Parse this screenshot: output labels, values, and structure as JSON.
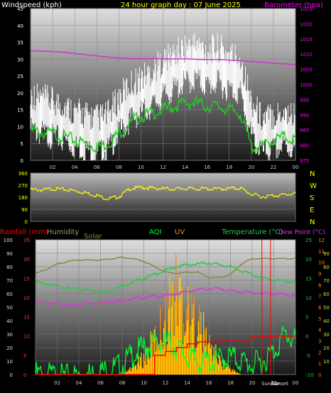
{
  "header": {
    "wind_label": "Windspeed (kph)",
    "title": "24 hour graph day : 07 June 2025",
    "baro_label": "Barometer (hpa)"
  },
  "direction_labels": [
    "N",
    "W",
    "S",
    "E",
    "N"
  ],
  "bottom_labels": {
    "rain": "Rainfall (mm)",
    "humidity": "Humidity",
    "solar": "Solar",
    "aqi": "AQI",
    "uv": "UV",
    "temp": "Temperature (°C)",
    "dew": "Dew Point (°C)",
    "sunrise": "Sunrise",
    "sunset": "Sunset"
  },
  "colors": {
    "wind_gust": "#ffffff",
    "wind_avg": "#22cc22",
    "barometer": "#cc33cc",
    "wind_dir": "#ffff00",
    "rain": "#ff0000",
    "humidity": "#888844",
    "solar": "#ffcc00",
    "solar_alt": "#ff8800",
    "aqi": "#00ff33",
    "uv": "#ff8800",
    "temperature": "#22cc44",
    "dew_point": "#dd33dd",
    "wind_label": "#ffffff",
    "title": "#ffff00",
    "baro_label": "#ff00ff"
  },
  "chart_data": [
    {
      "type": "line",
      "title": "24 hour graph day : 07 June 2025",
      "x_ticks": [
        "02",
        "04",
        "06",
        "08",
        "10",
        "12",
        "14",
        "16",
        "18",
        "20",
        "22",
        "00"
      ],
      "ylabel": "Windspeed (kph)",
      "ylim": [
        0,
        45
      ],
      "y_ticks": [
        0,
        5,
        10,
        15,
        20,
        25,
        30,
        35,
        40,
        45
      ],
      "y2label": "Barometer (hpa)",
      "y2lim": [
        975,
        1025
      ],
      "y2_ticks": [
        975,
        980,
        985,
        990,
        995,
        1000,
        1005,
        1010,
        1015,
        1020,
        1025
      ],
      "x_hours": [
        0,
        1,
        2,
        3,
        4,
        5,
        6,
        7,
        8,
        9,
        10,
        11,
        12,
        13,
        14,
        15,
        16,
        17,
        18,
        19,
        20,
        21,
        22,
        23,
        24
      ],
      "series": [
        {
          "key": "gust",
          "values": [
            15,
            14,
            13,
            12,
            10,
            9,
            8,
            9,
            14,
            18,
            20,
            22,
            25,
            27,
            29,
            30,
            28,
            29,
            27,
            26,
            13,
            8,
            9,
            10,
            9
          ]
        },
        {
          "key": "avg",
          "values": [
            10,
            9,
            9,
            8,
            7,
            6,
            5,
            6,
            9,
            12,
            14,
            15,
            16,
            17,
            18,
            18,
            17,
            17,
            16,
            15,
            5,
            5,
            7,
            8,
            7
          ]
        },
        {
          "key": "baro",
          "values": [
            1011,
            1011,
            1010.8,
            1010.6,
            1010.2,
            1009.8,
            1009.4,
            1009,
            1008.7,
            1008.5,
            1008.5,
            1008.5,
            1008.4,
            1008.4,
            1008.4,
            1008.3,
            1008.2,
            1008.2,
            1008,
            1007.8,
            1007.5,
            1007.3,
            1007,
            1006.8,
            1006.5
          ]
        }
      ]
    },
    {
      "type": "line",
      "ylim": [
        0,
        360
      ],
      "y_ticks": [
        0,
        90,
        180,
        270,
        360
      ],
      "x_hours": [
        0,
        1,
        2,
        3,
        4,
        5,
        6,
        7,
        8,
        9,
        10,
        11,
        12,
        13,
        14,
        15,
        16,
        17,
        18,
        19,
        20,
        21,
        22,
        23,
        24
      ],
      "series": [
        {
          "key": "direction",
          "values": [
            245,
            240,
            250,
            245,
            235,
            220,
            200,
            175,
            190,
            250,
            260,
            255,
            250,
            248,
            252,
            250,
            250,
            248,
            252,
            255,
            210,
            190,
            200,
            205,
            215
          ]
        }
      ]
    },
    {
      "type": "area",
      "x_ticks": [
        "02",
        "04",
        "06",
        "08",
        "10",
        "12",
        "14",
        "16",
        "18",
        "20",
        "22",
        "00"
      ],
      "sunrise_hour": 20.9,
      "sunset_hour": 21.7,
      "axes": {
        "rain": {
          "lim": [
            0,
            35
          ],
          "ticks": [
            0,
            5,
            10,
            15,
            20,
            25,
            30,
            35
          ]
        },
        "percent": {
          "lim": [
            0,
            100
          ],
          "ticks": [
            0,
            10,
            20,
            30,
            40,
            50,
            60,
            70,
            80,
            90,
            100
          ]
        },
        "temp": {
          "lim": [
            -10,
            25
          ],
          "ticks": [
            -10,
            -5,
            0,
            5,
            10,
            15,
            20,
            25
          ]
        },
        "uv": {
          "lim": [
            0,
            12
          ],
          "ticks": [
            0,
            1,
            2,
            3,
            4,
            5,
            6,
            7,
            8,
            9,
            10,
            11,
            12
          ]
        },
        "aqi": {
          "lim": [
            0,
            100
          ],
          "ticks": [
            10,
            20,
            30,
            40,
            50,
            60,
            70,
            80,
            90
          ]
        }
      },
      "x_hours": [
        0,
        1,
        2,
        3,
        4,
        5,
        6,
        7,
        8,
        9,
        10,
        11,
        12,
        13,
        14,
        15,
        16,
        17,
        18,
        19,
        20,
        21,
        22,
        23,
        24
      ],
      "series": [
        {
          "key": "humidity",
          "values": [
            75,
            78,
            82,
            84,
            85,
            85,
            85,
            86,
            87,
            86,
            84,
            80,
            76,
            75,
            76,
            76,
            72,
            72,
            74,
            82,
            86,
            86,
            86,
            86,
            86
          ]
        },
        {
          "key": "temperature",
          "values": [
            14,
            13.5,
            13,
            12.5,
            12,
            12,
            11.5,
            11.8,
            13,
            14,
            15,
            16,
            17,
            18,
            18.5,
            18.7,
            19,
            18.5,
            18,
            17,
            16,
            15,
            14.5,
            14.3,
            14
          ]
        },
        {
          "key": "dew_point",
          "values": [
            9,
            8.5,
            8.3,
            8,
            8.2,
            8.5,
            8.7,
            9,
            9.3,
            9.7,
            10,
            10.3,
            10.5,
            11,
            11.5,
            12,
            12.3,
            12.3,
            11.7,
            11.5,
            11.3,
            11,
            11,
            10.8,
            10.5
          ]
        },
        {
          "key": "aqi",
          "values": [
            5,
            5,
            4,
            3,
            4,
            5,
            7,
            9,
            12,
            20,
            25,
            28,
            30,
            25,
            18,
            15,
            14,
            16,
            18,
            15,
            12,
            15,
            22,
            35,
            30
          ]
        },
        {
          "key": "solar",
          "values": [
            0,
            0,
            0,
            0,
            0,
            0,
            0,
            0,
            0,
            5,
            12,
            25,
            42,
            60,
            48,
            38,
            22,
            10,
            4,
            0,
            0,
            0,
            0,
            0,
            0
          ]
        },
        {
          "key": "rain",
          "values": [
            0,
            0,
            0,
            0,
            0,
            0,
            0,
            0,
            0,
            0,
            0,
            5,
            6,
            7,
            8,
            8.5,
            8.5,
            9,
            9,
            9,
            10,
            10,
            10,
            10,
            10
          ]
        }
      ]
    }
  ]
}
